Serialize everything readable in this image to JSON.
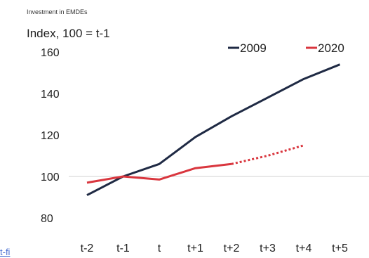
{
  "chart_data": {
    "type": "line",
    "title": "Investment in EMDEs",
    "ylabel": "Index, 100 = t-1",
    "xlabel": "",
    "categories": [
      "t-2",
      "t-1",
      "t",
      "t+1",
      "t+2",
      "t+3",
      "t+4",
      "t+5"
    ],
    "ylim": [
      80,
      160
    ],
    "yticks": [
      80,
      100,
      120,
      140,
      160
    ],
    "reference_line": 100,
    "grid": false,
    "legend_position": "top-right",
    "series": [
      {
        "name": "2009",
        "color": "#1f2a44",
        "style": "solid",
        "values": [
          91,
          100,
          106,
          119,
          129,
          138,
          147,
          154
        ]
      },
      {
        "name": "2020",
        "color": "#d9363e",
        "style": "solid",
        "values": [
          97,
          100,
          98.5,
          104,
          106,
          null,
          null,
          null
        ]
      },
      {
        "name": "2020",
        "color": "#d9363e",
        "style": "dotted",
        "values": [
          null,
          null,
          null,
          null,
          106,
          110,
          115,
          null
        ],
        "legend": false
      }
    ]
  },
  "footer_link": "t-fi"
}
